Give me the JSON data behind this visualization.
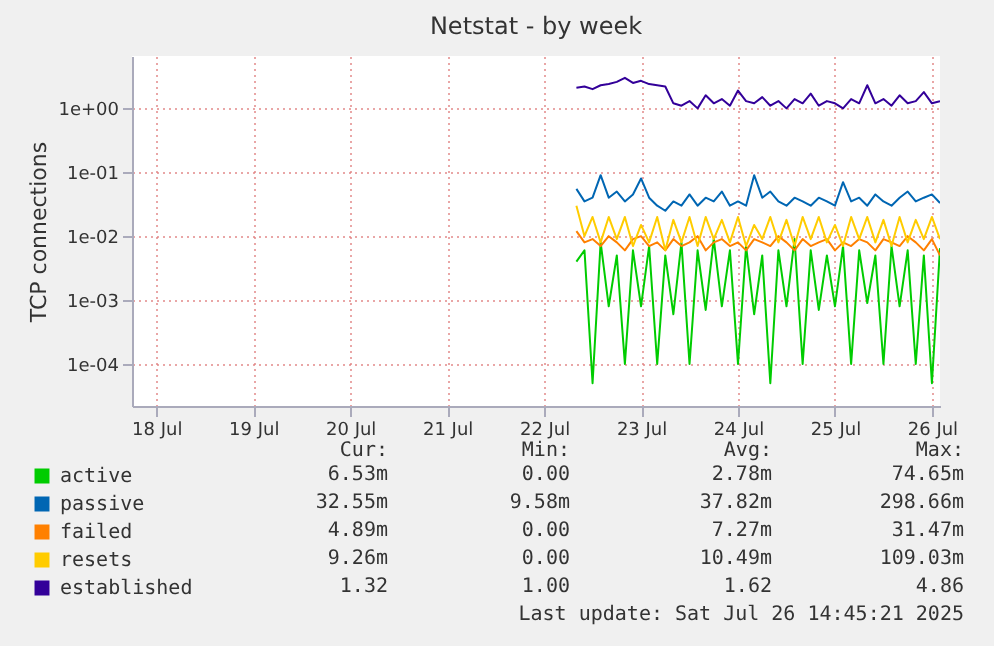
{
  "chart_data": {
    "type": "line",
    "title": "Netstat - by week",
    "ylabel": "TCP connections",
    "log": "y",
    "grid": true,
    "legend": "bottom left",
    "xlim": [
      "2025-07-18T06:00",
      "2025-07-26T14:00"
    ],
    "xticks": [
      {
        "value": "2025-07-18T12:00",
        "label": "18 Jul"
      },
      {
        "value": "2025-07-19T12:00",
        "label": "19 Jul"
      },
      {
        "value": "2025-07-20T12:00",
        "label": "20 Jul"
      },
      {
        "value": "2025-07-21T12:00",
        "label": "21 Jul"
      },
      {
        "value": "2025-07-22T12:00",
        "label": "22 Jul"
      },
      {
        "value": "2025-07-23T12:00",
        "label": "23 Jul"
      },
      {
        "value": "2025-07-24T12:00",
        "label": "24 Jul"
      },
      {
        "value": "2025-07-25T12:00",
        "label": "25 Jul"
      },
      {
        "value": "2025-07-26T12:00",
        "label": "26 Jul"
      }
    ],
    "ylim": [
      2.2e-05,
      6.6
    ],
    "yticks": [
      {
        "value": 0.0001,
        "label": "1e-04"
      },
      {
        "value": 0.001,
        "label": "1e-03"
      },
      {
        "value": 0.01,
        "label": "1e-02"
      },
      {
        "value": 0.1,
        "label": "1e-01"
      },
      {
        "value": 1,
        "label": "1e+00"
      }
    ],
    "x": [
      "2025-07-22T20:00",
      "2025-07-22T22:00",
      "2025-07-23T00:00",
      "2025-07-23T02:00",
      "2025-07-23T04:00",
      "2025-07-23T06:00",
      "2025-07-23T08:00",
      "2025-07-23T10:00",
      "2025-07-23T12:00",
      "2025-07-23T14:00",
      "2025-07-23T16:00",
      "2025-07-23T18:00",
      "2025-07-23T20:00",
      "2025-07-23T22:00",
      "2025-07-24T00:00",
      "2025-07-24T02:00",
      "2025-07-24T04:00",
      "2025-07-24T06:00",
      "2025-07-24T08:00",
      "2025-07-24T10:00",
      "2025-07-24T12:00",
      "2025-07-24T14:00",
      "2025-07-24T16:00",
      "2025-07-24T18:00",
      "2025-07-24T20:00",
      "2025-07-24T22:00",
      "2025-07-25T00:00",
      "2025-07-25T02:00",
      "2025-07-25T04:00",
      "2025-07-25T06:00",
      "2025-07-25T08:00",
      "2025-07-25T10:00",
      "2025-07-25T12:00",
      "2025-07-25T14:00",
      "2025-07-25T16:00",
      "2025-07-25T18:00",
      "2025-07-25T20:00",
      "2025-07-25T22:00",
      "2025-07-26T00:00",
      "2025-07-26T02:00",
      "2025-07-26T04:00",
      "2025-07-26T06:00",
      "2025-07-26T08:00",
      "2025-07-26T10:00",
      "2025-07-26T12:00",
      "2025-07-26T14:00"
    ],
    "series": [
      {
        "name": "active",
        "color": "#00cc00",
        "values": [
          0.004,
          0.006,
          5e-05,
          0.008,
          0.0008,
          0.005,
          0.0001,
          0.006,
          0.0008,
          0.007,
          0.0001,
          0.005,
          0.0006,
          0.008,
          0.0001,
          0.006,
          0.0007,
          0.009,
          0.0008,
          0.006,
          0.0001,
          0.007,
          0.0006,
          0.005,
          5e-05,
          0.006,
          0.0008,
          0.009,
          0.0001,
          0.006,
          0.0007,
          0.005,
          0.0008,
          0.007,
          0.0001,
          0.006,
          0.0009,
          0.005,
          0.0001,
          0.007,
          0.0008,
          0.006,
          0.0001,
          0.005,
          5e-05,
          0.0065
        ]
      },
      {
        "name": "passive",
        "color": "#0066b3",
        "values": [
          0.055,
          0.035,
          0.04,
          0.09,
          0.04,
          0.05,
          0.035,
          0.045,
          0.08,
          0.04,
          0.03,
          0.025,
          0.035,
          0.03,
          0.045,
          0.03,
          0.04,
          0.035,
          0.05,
          0.03,
          0.035,
          0.03,
          0.09,
          0.04,
          0.05,
          0.035,
          0.03,
          0.04,
          0.035,
          0.03,
          0.04,
          0.035,
          0.03,
          0.07,
          0.035,
          0.04,
          0.03,
          0.045,
          0.035,
          0.03,
          0.04,
          0.05,
          0.035,
          0.04,
          0.045,
          0.033
        ]
      },
      {
        "name": "failed",
        "color": "#ff8000",
        "values": [
          0.012,
          0.008,
          0.009,
          0.007,
          0.01,
          0.008,
          0.006,
          0.009,
          0.01,
          0.007,
          0.008,
          0.006,
          0.009,
          0.007,
          0.008,
          0.01,
          0.006,
          0.008,
          0.009,
          0.007,
          0.008,
          0.006,
          0.009,
          0.008,
          0.007,
          0.01,
          0.008,
          0.006,
          0.009,
          0.007,
          0.008,
          0.009,
          0.006,
          0.008,
          0.007,
          0.009,
          0.008,
          0.006,
          0.009,
          0.008,
          0.007,
          0.01,
          0.008,
          0.006,
          0.009,
          0.005
        ]
      },
      {
        "name": "resets",
        "color": "#ffcc00",
        "values": [
          0.03,
          0.01,
          0.02,
          0.008,
          0.02,
          0.009,
          0.02,
          0.007,
          0.015,
          0.008,
          0.02,
          0.006,
          0.018,
          0.008,
          0.02,
          0.007,
          0.02,
          0.009,
          0.018,
          0.008,
          0.02,
          0.007,
          0.015,
          0.009,
          0.02,
          0.008,
          0.018,
          0.007,
          0.02,
          0.009,
          0.02,
          0.008,
          0.015,
          0.007,
          0.02,
          0.009,
          0.02,
          0.008,
          0.018,
          0.007,
          0.02,
          0.008,
          0.018,
          0.009,
          0.02,
          0.009
        ]
      },
      {
        "name": "established",
        "color": "#330099",
        "values": [
          2.1,
          2.2,
          2.0,
          2.3,
          2.4,
          2.6,
          3.0,
          2.5,
          2.7,
          2.4,
          2.3,
          2.2,
          1.2,
          1.1,
          1.3,
          1.0,
          1.6,
          1.2,
          1.4,
          1.1,
          1.9,
          1.3,
          1.2,
          1.5,
          1.1,
          1.3,
          1.0,
          1.4,
          1.2,
          1.7,
          1.1,
          1.3,
          1.2,
          1.0,
          1.4,
          1.2,
          2.3,
          1.2,
          1.4,
          1.1,
          1.6,
          1.2,
          1.3,
          1.8,
          1.2,
          1.3
        ]
      }
    ],
    "annotations": [
      "Cur:",
      "Min:",
      "Avg:",
      "Max:",
      "6.53m",
      "0.00",
      "2.78m",
      "74.65m",
      "32.55m",
      "9.58m",
      "37.82m",
      "298.66m",
      "4.89m",
      "0.00",
      "7.27m",
      "31.47m",
      "9.26m",
      "0.00",
      "10.49m",
      "109.03m",
      "1.32",
      "1.00",
      "1.62",
      "4.86",
      "Last update: Sat Jul 26 14:45:21 2025"
    ]
  }
}
